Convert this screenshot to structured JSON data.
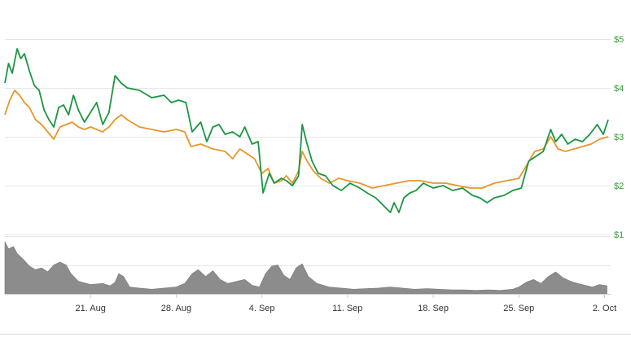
{
  "chart_data": {
    "type": "line",
    "title": "",
    "xlabel": "",
    "ylabel": "",
    "grid": true,
    "x_tick_labels": [
      "21. Aug",
      "28. Aug",
      "4. Sep",
      "11. Sep",
      "18. Sep",
      "25. Sep",
      "2. Oct"
    ],
    "x_tick_days": [
      7,
      14,
      21,
      28,
      35,
      42,
      49
    ],
    "x_range": [
      0,
      49.5
    ],
    "y_tick_labels": [
      "$5",
      "$4",
      "$3",
      "$2",
      "$1"
    ],
    "y_tick_values": [
      5,
      4,
      3,
      2,
      1
    ],
    "ylim": [
      1,
      5
    ],
    "volume_tick_labels": [
      "",
      "",
      ""
    ],
    "colors": {
      "series_a": "#1a9641",
      "series_b": "#e8962a",
      "volume": "#8c8c8c",
      "grid": "#e6e6e6",
      "y_labels": "#3a9a3a"
    },
    "series": [
      {
        "color": "#1a9641",
        "points": [
          [
            0,
            4.1
          ],
          [
            0.3,
            4.5
          ],
          [
            0.6,
            4.3
          ],
          [
            1.0,
            4.8
          ],
          [
            1.3,
            4.6
          ],
          [
            1.6,
            4.7
          ],
          [
            2.0,
            4.35
          ],
          [
            2.4,
            4.05
          ],
          [
            2.8,
            3.95
          ],
          [
            3.2,
            3.55
          ],
          [
            3.6,
            3.35
          ],
          [
            4.0,
            3.2
          ],
          [
            4.4,
            3.6
          ],
          [
            4.8,
            3.65
          ],
          [
            5.2,
            3.45
          ],
          [
            5.6,
            3.85
          ],
          [
            6.0,
            3.55
          ],
          [
            6.5,
            3.3
          ],
          [
            7.0,
            3.5
          ],
          [
            7.5,
            3.7
          ],
          [
            8.0,
            3.25
          ],
          [
            8.5,
            3.5
          ],
          [
            9.0,
            4.25
          ],
          [
            9.5,
            4.1
          ],
          [
            10.0,
            4.0
          ],
          [
            11.0,
            3.95
          ],
          [
            12.0,
            3.8
          ],
          [
            13.0,
            3.85
          ],
          [
            13.6,
            3.7
          ],
          [
            14.2,
            3.75
          ],
          [
            14.8,
            3.7
          ],
          [
            15.3,
            3.1
          ],
          [
            16.0,
            3.3
          ],
          [
            16.5,
            2.9
          ],
          [
            17.0,
            3.2
          ],
          [
            17.5,
            3.25
          ],
          [
            18.0,
            3.05
          ],
          [
            18.6,
            3.1
          ],
          [
            19.2,
            3.0
          ],
          [
            19.6,
            3.2
          ],
          [
            20.2,
            2.85
          ],
          [
            20.7,
            2.9
          ],
          [
            21.1,
            1.85
          ],
          [
            21.6,
            2.25
          ],
          [
            22.0,
            2.05
          ],
          [
            22.6,
            2.15
          ],
          [
            23.0,
            2.1
          ],
          [
            23.5,
            2.0
          ],
          [
            24.0,
            2.2
          ],
          [
            24.3,
            3.25
          ],
          [
            24.7,
            2.85
          ],
          [
            25.1,
            2.5
          ],
          [
            25.6,
            2.25
          ],
          [
            26.2,
            2.2
          ],
          [
            26.8,
            2.0
          ],
          [
            27.5,
            1.9
          ],
          [
            28.2,
            2.05
          ],
          [
            29.0,
            1.95
          ],
          [
            29.6,
            1.85
          ],
          [
            30.3,
            1.75
          ],
          [
            30.9,
            1.6
          ],
          [
            31.5,
            1.45
          ],
          [
            31.8,
            1.65
          ],
          [
            32.2,
            1.45
          ],
          [
            32.6,
            1.75
          ],
          [
            33.1,
            1.85
          ],
          [
            33.6,
            1.9
          ],
          [
            34.2,
            2.05
          ],
          [
            35.0,
            1.95
          ],
          [
            35.8,
            2.0
          ],
          [
            36.6,
            1.9
          ],
          [
            37.4,
            1.95
          ],
          [
            38.2,
            1.8
          ],
          [
            38.8,
            1.75
          ],
          [
            39.4,
            1.65
          ],
          [
            40.0,
            1.75
          ],
          [
            40.8,
            1.8
          ],
          [
            41.5,
            1.9
          ],
          [
            42.2,
            1.95
          ],
          [
            42.8,
            2.5
          ],
          [
            43.4,
            2.6
          ],
          [
            44.0,
            2.7
          ],
          [
            44.6,
            3.15
          ],
          [
            45.0,
            2.9
          ],
          [
            45.5,
            3.05
          ],
          [
            46.0,
            2.85
          ],
          [
            46.6,
            2.95
          ],
          [
            47.2,
            2.9
          ],
          [
            47.8,
            3.05
          ],
          [
            48.4,
            3.25
          ],
          [
            48.9,
            3.05
          ],
          [
            49.3,
            3.35
          ]
        ]
      },
      {
        "color": "#e8962a",
        "points": [
          [
            0,
            3.45
          ],
          [
            0.4,
            3.75
          ],
          [
            0.8,
            3.95
          ],
          [
            1.2,
            3.85
          ],
          [
            1.6,
            3.7
          ],
          [
            2.0,
            3.6
          ],
          [
            2.5,
            3.35
          ],
          [
            3.0,
            3.25
          ],
          [
            3.5,
            3.1
          ],
          [
            4.0,
            2.95
          ],
          [
            4.5,
            3.2
          ],
          [
            5.0,
            3.25
          ],
          [
            5.5,
            3.3
          ],
          [
            6.0,
            3.2
          ],
          [
            6.5,
            3.15
          ],
          [
            7.0,
            3.2
          ],
          [
            7.5,
            3.15
          ],
          [
            8.0,
            3.1
          ],
          [
            8.5,
            3.2
          ],
          [
            9.0,
            3.35
          ],
          [
            9.5,
            3.45
          ],
          [
            10.0,
            3.35
          ],
          [
            11.0,
            3.2
          ],
          [
            12.0,
            3.15
          ],
          [
            13.0,
            3.1
          ],
          [
            14.0,
            3.15
          ],
          [
            14.7,
            3.1
          ],
          [
            15.2,
            2.8
          ],
          [
            16.0,
            2.85
          ],
          [
            17.0,
            2.75
          ],
          [
            18.0,
            2.7
          ],
          [
            18.6,
            2.55
          ],
          [
            19.2,
            2.75
          ],
          [
            19.8,
            2.65
          ],
          [
            20.4,
            2.55
          ],
          [
            21.0,
            2.25
          ],
          [
            21.5,
            2.35
          ],
          [
            22.0,
            2.05
          ],
          [
            22.6,
            2.1
          ],
          [
            23.0,
            2.2
          ],
          [
            23.5,
            2.05
          ],
          [
            24.0,
            2.3
          ],
          [
            24.3,
            2.7
          ],
          [
            24.7,
            2.5
          ],
          [
            25.2,
            2.3
          ],
          [
            25.8,
            2.15
          ],
          [
            26.5,
            2.05
          ],
          [
            27.3,
            2.15
          ],
          [
            28.0,
            2.1
          ],
          [
            29.0,
            2.05
          ],
          [
            30.0,
            1.95
          ],
          [
            31.0,
            2.0
          ],
          [
            32.0,
            2.05
          ],
          [
            33.0,
            2.1
          ],
          [
            34.0,
            2.1
          ],
          [
            35.0,
            2.05
          ],
          [
            36.0,
            2.05
          ],
          [
            37.0,
            2.0
          ],
          [
            38.0,
            1.95
          ],
          [
            39.0,
            1.95
          ],
          [
            40.0,
            2.05
          ],
          [
            41.0,
            2.1
          ],
          [
            42.0,
            2.15
          ],
          [
            42.6,
            2.4
          ],
          [
            43.3,
            2.7
          ],
          [
            44.0,
            2.75
          ],
          [
            44.6,
            3.0
          ],
          [
            45.2,
            2.75
          ],
          [
            45.8,
            2.7
          ],
          [
            46.5,
            2.75
          ],
          [
            47.2,
            2.8
          ],
          [
            47.9,
            2.85
          ],
          [
            48.6,
            2.95
          ],
          [
            49.3,
            3.0
          ]
        ]
      }
    ],
    "volume": {
      "ylim": [
        0,
        1
      ],
      "points": [
        [
          0,
          0.9
        ],
        [
          0.3,
          0.78
        ],
        [
          0.7,
          0.82
        ],
        [
          1.0,
          0.7
        ],
        [
          1.5,
          0.6
        ],
        [
          2.0,
          0.48
        ],
        [
          2.5,
          0.42
        ],
        [
          3.0,
          0.45
        ],
        [
          3.5,
          0.38
        ],
        [
          4.0,
          0.5
        ],
        [
          4.5,
          0.55
        ],
        [
          5.0,
          0.5
        ],
        [
          5.4,
          0.35
        ],
        [
          6.0,
          0.22
        ],
        [
          7.0,
          0.16
        ],
        [
          8.0,
          0.18
        ],
        [
          8.6,
          0.14
        ],
        [
          9.0,
          0.2
        ],
        [
          9.3,
          0.35
        ],
        [
          9.7,
          0.3
        ],
        [
          10.2,
          0.12
        ],
        [
          11.0,
          0.1
        ],
        [
          12.0,
          0.08
        ],
        [
          13.0,
          0.1
        ],
        [
          14.0,
          0.12
        ],
        [
          14.7,
          0.18
        ],
        [
          15.3,
          0.35
        ],
        [
          15.8,
          0.42
        ],
        [
          16.4,
          0.3
        ],
        [
          17.0,
          0.4
        ],
        [
          17.6,
          0.25
        ],
        [
          18.2,
          0.18
        ],
        [
          19.0,
          0.22
        ],
        [
          19.6,
          0.25
        ],
        [
          20.2,
          0.15
        ],
        [
          20.8,
          0.12
        ],
        [
          21.3,
          0.35
        ],
        [
          21.8,
          0.48
        ],
        [
          22.3,
          0.5
        ],
        [
          22.8,
          0.32
        ],
        [
          23.3,
          0.25
        ],
        [
          23.8,
          0.45
        ],
        [
          24.3,
          0.52
        ],
        [
          24.8,
          0.3
        ],
        [
          25.5,
          0.18
        ],
        [
          26.5,
          0.12
        ],
        [
          27.5,
          0.1
        ],
        [
          28.5,
          0.08
        ],
        [
          29.5,
          0.09
        ],
        [
          30.5,
          0.1
        ],
        [
          31.5,
          0.12
        ],
        [
          32.5,
          0.1
        ],
        [
          33.5,
          0.08
        ],
        [
          34.5,
          0.09
        ],
        [
          35.5,
          0.08
        ],
        [
          36.5,
          0.07
        ],
        [
          37.5,
          0.07
        ],
        [
          38.5,
          0.06
        ],
        [
          39.5,
          0.07
        ],
        [
          40.5,
          0.06
        ],
        [
          41.5,
          0.08
        ],
        [
          42.0,
          0.12
        ],
        [
          42.6,
          0.2
        ],
        [
          43.2,
          0.25
        ],
        [
          43.8,
          0.18
        ],
        [
          44.4,
          0.3
        ],
        [
          45.0,
          0.38
        ],
        [
          45.6,
          0.28
        ],
        [
          46.2,
          0.22
        ],
        [
          46.8,
          0.18
        ],
        [
          47.4,
          0.15
        ],
        [
          48.0,
          0.12
        ],
        [
          48.6,
          0.16
        ],
        [
          49.2,
          0.14
        ]
      ]
    }
  }
}
